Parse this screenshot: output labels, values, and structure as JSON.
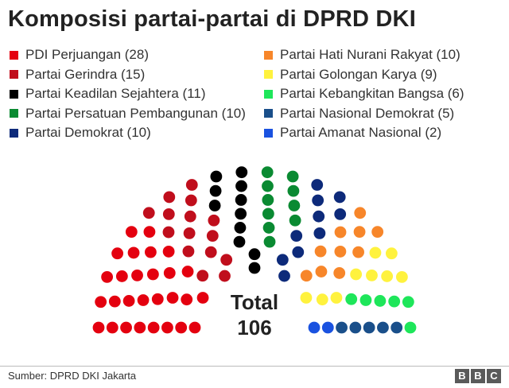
{
  "title": "Komposisi partai-partai di DPRD DKI",
  "source": "Sumber: DPRD DKI Jakarta",
  "logo": [
    "B",
    "B",
    "C"
  ],
  "total": {
    "label": "Total",
    "value": "106"
  },
  "chart_data": {
    "type": "parliament",
    "title": "Komposisi partai-partai di DPRD DKI",
    "total": 106,
    "legend_layout": "two-columns",
    "series": [
      {
        "name": "PDI Perjuangan",
        "value": 28,
        "color": "#e4000f"
      },
      {
        "name": "Partai Gerindra",
        "value": 15,
        "color": "#c00e1c"
      },
      {
        "name": "Partai Keadilan Sejahtera",
        "value": 11,
        "color": "#000000"
      },
      {
        "name": "Partai Persatuan Pembangunan",
        "value": 10,
        "color": "#0a8a32"
      },
      {
        "name": "Partai Demokrat",
        "value": 10,
        "color": "#0d2a7a"
      },
      {
        "name": "Partai Hati Nurani Rakyat",
        "value": 10,
        "color": "#f7862a"
      },
      {
        "name": "Partai Golongan Karya",
        "value": 9,
        "color": "#fff23e"
      },
      {
        "name": "Partai Kebangkitan Bangsa",
        "value": 6,
        "color": "#1ee65a"
      },
      {
        "name": "Partai Nasional Demokrat",
        "value": 5,
        "color": "#1a4f8a"
      },
      {
        "name": "Partai Amanat Nasional",
        "value": 2,
        "color": "#1a52e0"
      }
    ]
  }
}
